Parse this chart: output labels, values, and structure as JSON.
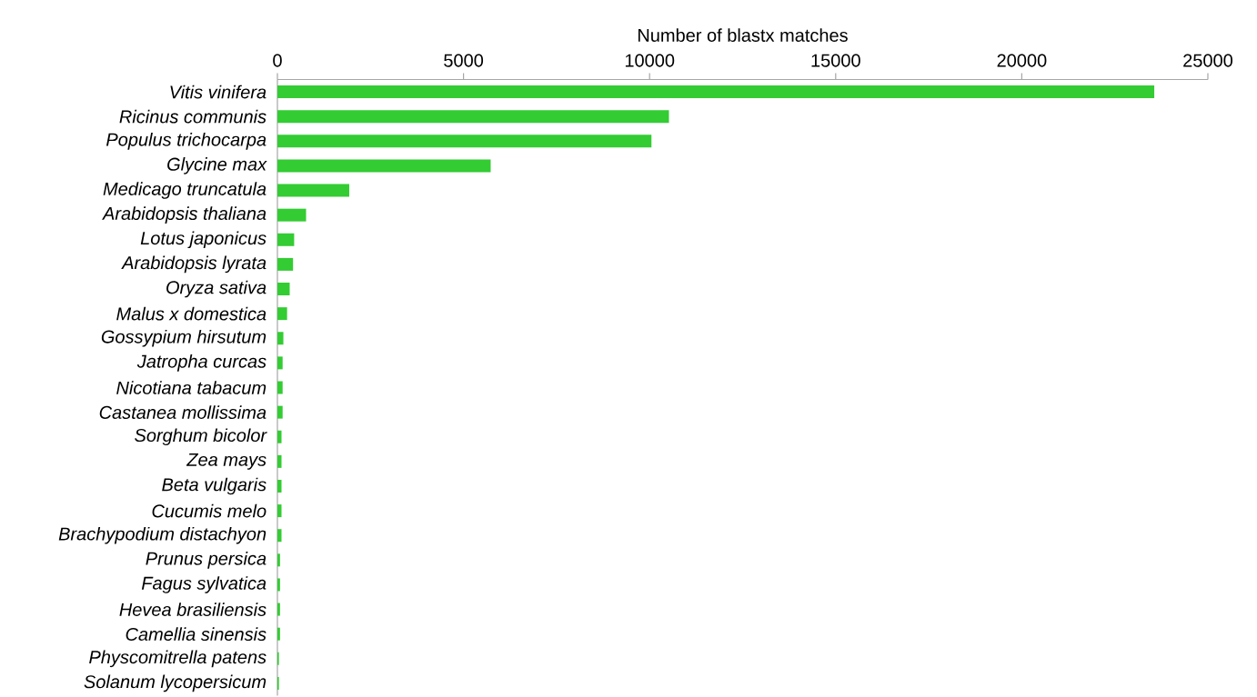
{
  "chart_data": {
    "type": "bar",
    "orientation": "horizontal",
    "xlabel": "Number of blastx matches",
    "categories": [
      "Vitis vinifera",
      "Ricinus communis",
      "Populus trichocarpa",
      "Glycine max",
      "Medicago truncatula",
      "Arabidopsis thaliana",
      "Lotus japonicus",
      "Arabidopsis lyrata",
      "Oryza sativa",
      "Malus x domestica",
      "Gossypium hirsutum",
      "Jatropha curcas",
      "Nicotiana tabacum",
      "Castanea mollissima",
      "Sorghum bicolor",
      "Zea mays",
      "Beta vulgaris",
      "Cucumis melo",
      "Brachypodium distachyon",
      "Prunus persica",
      "Fagus sylvatica",
      "Hevea brasiliensis",
      "Camellia sinensis",
      "Physcomitrella patens",
      "Solanum lycopersicum"
    ],
    "values": [
      23560,
      10520,
      10050,
      5730,
      1930,
      770,
      450,
      420,
      330,
      260,
      160,
      140,
      140,
      140,
      110,
      110,
      110,
      110,
      110,
      70,
      70,
      70,
      70,
      40,
      40
    ],
    "color": "#33cc33",
    "xlim": [
      0,
      25000
    ],
    "xticks": [
      0,
      5000,
      10000,
      15000,
      20000,
      25000
    ]
  }
}
